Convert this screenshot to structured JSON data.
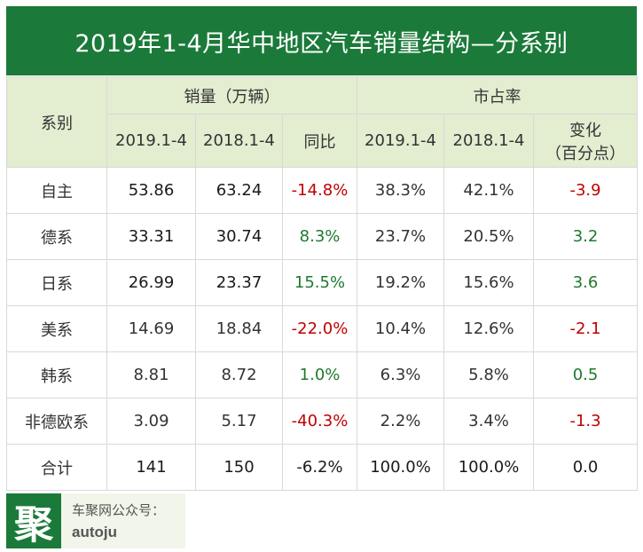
{
  "title": "2019年1-4月华中地区汽车销量结构—分系别",
  "header": {
    "series_label": "系别",
    "sales_group": "销量（万辆）",
    "share_group": "市占率",
    "sales_cols": [
      "2019.1-4",
      "2018.1-4",
      "同比"
    ],
    "share_cols": [
      "2019.1-4",
      "2018.1-4"
    ],
    "change_label_line1": "变化",
    "change_label_line2": "（百分点）"
  },
  "rows": [
    {
      "name": "自主",
      "s2019": "53.86",
      "s2018": "63.24",
      "yoy": "-14.8%",
      "m2019": "38.3%",
      "m2018": "42.1%",
      "chg": "-3.9"
    },
    {
      "name": "德系",
      "s2019": "33.31",
      "s2018": "30.74",
      "yoy": "8.3%",
      "m2019": "23.7%",
      "m2018": "20.5%",
      "chg": "3.2"
    },
    {
      "name": "日系",
      "s2019": "26.99",
      "s2018": "23.37",
      "yoy": "15.5%",
      "m2019": "19.2%",
      "m2018": "15.6%",
      "chg": "3.6"
    },
    {
      "name": "美系",
      "s2019": "14.69",
      "s2018": "18.84",
      "yoy": "-22.0%",
      "m2019": "10.4%",
      "m2018": "12.6%",
      "chg": "-2.1"
    },
    {
      "name": "韩系",
      "s2019": "8.81",
      "s2018": "8.72",
      "yoy": "1.0%",
      "m2019": "6.3%",
      "m2018": "5.8%",
      "chg": "0.5"
    },
    {
      "name": "非德欧系",
      "s2019": "3.09",
      "s2018": "5.17",
      "yoy": "-40.3%",
      "m2019": "2.2%",
      "m2018": "3.4%",
      "chg": "-1.3"
    },
    {
      "name": "合计",
      "s2019": "141",
      "s2018": "150",
      "yoy": "-6.2%",
      "m2019": "100.0%",
      "m2018": "100.0%",
      "chg": "0.0"
    }
  ],
  "colors": {
    "brand_green": "#1b7a3a",
    "header_bg": "#e3edd0",
    "negative": "#c00000",
    "positive": "#1e7a2e"
  },
  "footer": {
    "logo_char": "聚",
    "line1": "车聚网公众号：",
    "line2": "autoju"
  }
}
